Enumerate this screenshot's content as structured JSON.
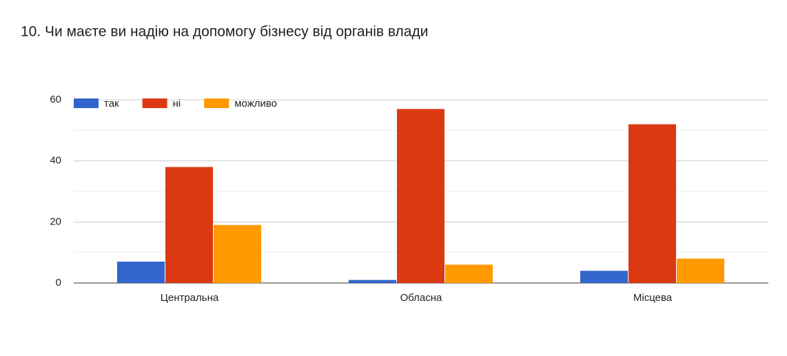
{
  "chart_data": {
    "type": "bar",
    "title": "10. Чи маєте ви надію на допомогу бізнесу від органів влади",
    "categories": [
      "Центральна",
      "Обласна",
      "Місцева"
    ],
    "series": [
      {
        "name": "так",
        "color": "#3366cc",
        "values": [
          7,
          1,
          4
        ]
      },
      {
        "name": "ні",
        "color": "#dc3912",
        "values": [
          38,
          57,
          52
        ]
      },
      {
        "name": "можливо",
        "color": "#ff9900",
        "values": [
          19,
          6,
          8
        ]
      }
    ],
    "ylim": [
      0,
      60
    ],
    "yticks": [
      0,
      20,
      40,
      60
    ],
    "minor_yticks": [
      10,
      30,
      50
    ],
    "grid": true,
    "legend": "top-left"
  }
}
